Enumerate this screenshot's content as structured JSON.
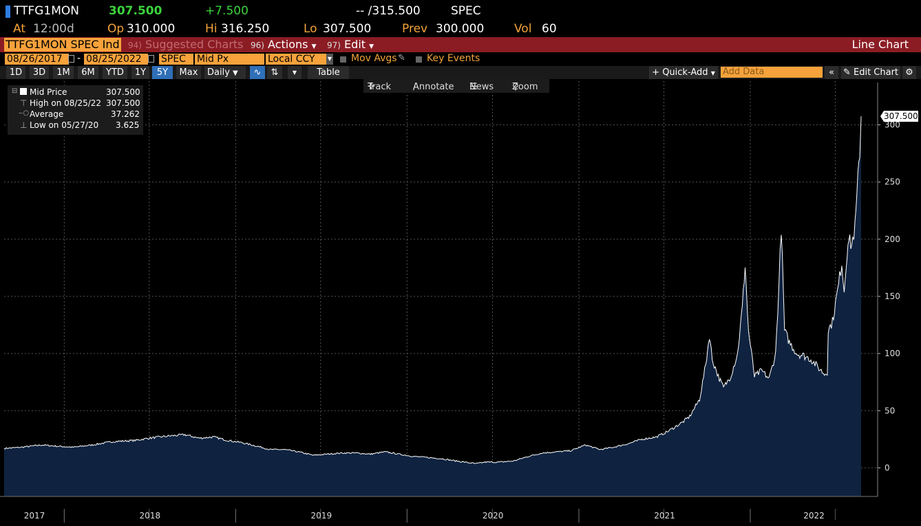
{
  "header": {
    "ticker": "TTFG1MON",
    "last": "307.500",
    "change": "+7.500",
    "bid_ask": "-- /315.500",
    "source": "SPEC"
  },
  "quote": {
    "at_label": "At",
    "at_value": "12:00d",
    "op_label": "Op",
    "op_value": "310.000",
    "hi_label": "Hi",
    "hi_value": "316.250",
    "lo_label": "Lo",
    "lo_value": "307.500",
    "prev_label": "Prev",
    "prev_value": "300.000",
    "vol_label": "Vol",
    "vol_value": "60"
  },
  "menubar": {
    "security": "TTFG1MON SPEC Ind",
    "suggested_num": "94)",
    "suggested": "Suggested Charts",
    "actions_num": "96)",
    "actions": "Actions",
    "edit_num": "97)",
    "edit": "Edit",
    "title": "Line Chart"
  },
  "params": {
    "start_date": "08/26/2017",
    "dash": "-",
    "end_date": "08/25/2022",
    "source": "SPEC",
    "field": "Mid Px",
    "currency": "Local CCY",
    "mov_avgs": "Mov Avgs",
    "key_events": "Key Events"
  },
  "toolbar": {
    "ranges": [
      "1D",
      "3D",
      "1M",
      "6M",
      "YTD",
      "1Y",
      "5Y",
      "Max"
    ],
    "selected_range": "5Y",
    "frequency": "Daily",
    "table": "Table",
    "quick_add": "Quick-Add",
    "add_data_placeholder": "Add Data",
    "edit_chart": "Edit Chart"
  },
  "chart_tools": {
    "track": "Track",
    "annotate": "Annotate",
    "news": "News",
    "zoom": "Zoom"
  },
  "legend": {
    "mid_price_label": "Mid Price",
    "mid_price_value": "307.500",
    "high_label": "High on 08/25/22",
    "high_value": "307.500",
    "average_label": "Average",
    "average_value": "37.262",
    "low_label": "Low on 05/27/20",
    "low_value": "3.625"
  },
  "colors": {
    "accent_orange": "#f7a23b",
    "menubar_red": "#8b1c24",
    "positive_green": "#3cd23c",
    "area_fill": "#0f2340",
    "line": "#ffffff"
  },
  "chart_data": {
    "type": "area",
    "x_unit": "date",
    "x_range": [
      "2017-08-26",
      "2022-08-25"
    ],
    "y_range": [
      -25,
      325
    ],
    "y_ticks": [
      0,
      50,
      100,
      150,
      200,
      250,
      300
    ],
    "x_tick_labels": [
      "2017",
      "2018",
      "2019",
      "2020",
      "2021",
      "2022"
    ],
    "last_value_label": "307.500",
    "grid": true,
    "series": [
      {
        "values": [
          [
            "2017-08-26",
            17
          ],
          [
            "2017-10-01",
            18
          ],
          [
            "2017-11-15",
            20
          ],
          [
            "2017-12-15",
            19
          ],
          [
            "2018-01-20",
            18
          ],
          [
            "2018-03-01",
            20
          ],
          [
            "2018-04-15",
            23
          ],
          [
            "2018-06-01",
            24
          ],
          [
            "2018-07-01",
            26
          ],
          [
            "2018-08-15",
            28
          ],
          [
            "2018-09-15",
            29
          ],
          [
            "2018-10-15",
            26
          ],
          [
            "2018-11-15",
            27
          ],
          [
            "2018-12-15",
            24
          ],
          [
            "2019-01-15",
            22
          ],
          [
            "2019-02-15",
            19
          ],
          [
            "2019-03-15",
            16
          ],
          [
            "2019-04-15",
            16
          ],
          [
            "2019-05-15",
            14
          ],
          [
            "2019-06-15",
            11
          ],
          [
            "2019-07-15",
            12
          ],
          [
            "2019-08-15",
            13
          ],
          [
            "2019-09-15",
            13
          ],
          [
            "2019-10-15",
            12
          ],
          [
            "2019-11-15",
            14
          ],
          [
            "2019-12-15",
            12
          ],
          [
            "2020-01-15",
            10
          ],
          [
            "2020-02-15",
            9
          ],
          [
            "2020-03-15",
            8
          ],
          [
            "2020-04-15",
            6
          ],
          [
            "2020-05-27",
            3.625
          ],
          [
            "2020-06-15",
            5
          ],
          [
            "2020-07-15",
            5
          ],
          [
            "2020-08-15",
            6
          ],
          [
            "2020-09-15",
            10
          ],
          [
            "2020-10-15",
            13
          ],
          [
            "2020-11-15",
            14
          ],
          [
            "2020-12-15",
            15
          ],
          [
            "2021-01-15",
            20
          ],
          [
            "2021-02-15",
            16
          ],
          [
            "2021-03-15",
            18
          ],
          [
            "2021-04-15",
            21
          ],
          [
            "2021-05-15",
            25
          ],
          [
            "2021-06-15",
            27
          ],
          [
            "2021-07-10",
            32
          ],
          [
            "2021-08-10",
            40
          ],
          [
            "2021-08-25",
            45
          ],
          [
            "2021-09-15",
            60
          ],
          [
            "2021-09-28",
            90
          ],
          [
            "2021-10-06",
            116
          ],
          [
            "2021-10-12",
            95
          ],
          [
            "2021-10-25",
            80
          ],
          [
            "2021-11-05",
            70
          ],
          [
            "2021-11-20",
            80
          ],
          [
            "2021-12-05",
            100
          ],
          [
            "2021-12-15",
            140
          ],
          [
            "2021-12-21",
            178
          ],
          [
            "2021-12-28",
            120
          ],
          [
            "2022-01-10",
            80
          ],
          [
            "2022-01-25",
            85
          ],
          [
            "2022-02-10",
            78
          ],
          [
            "2022-02-24",
            100
          ],
          [
            "2022-03-03",
            160
          ],
          [
            "2022-03-08",
            211
          ],
          [
            "2022-03-15",
            120
          ],
          [
            "2022-03-25",
            110
          ],
          [
            "2022-04-10",
            100
          ],
          [
            "2022-04-25",
            98
          ],
          [
            "2022-05-10",
            95
          ],
          [
            "2022-05-25",
            88
          ],
          [
            "2022-06-08",
            82
          ],
          [
            "2022-06-14",
            84
          ],
          [
            "2022-06-16",
            120
          ],
          [
            "2022-06-25",
            128
          ],
          [
            "2022-07-08",
            160
          ],
          [
            "2022-07-15",
            180
          ],
          [
            "2022-07-20",
            155
          ],
          [
            "2022-07-28",
            200
          ],
          [
            "2022-08-05",
            195
          ],
          [
            "2022-08-12",
            210
          ],
          [
            "2022-08-18",
            250
          ],
          [
            "2022-08-22",
            278
          ],
          [
            "2022-08-25",
            307.5
          ]
        ]
      }
    ]
  }
}
